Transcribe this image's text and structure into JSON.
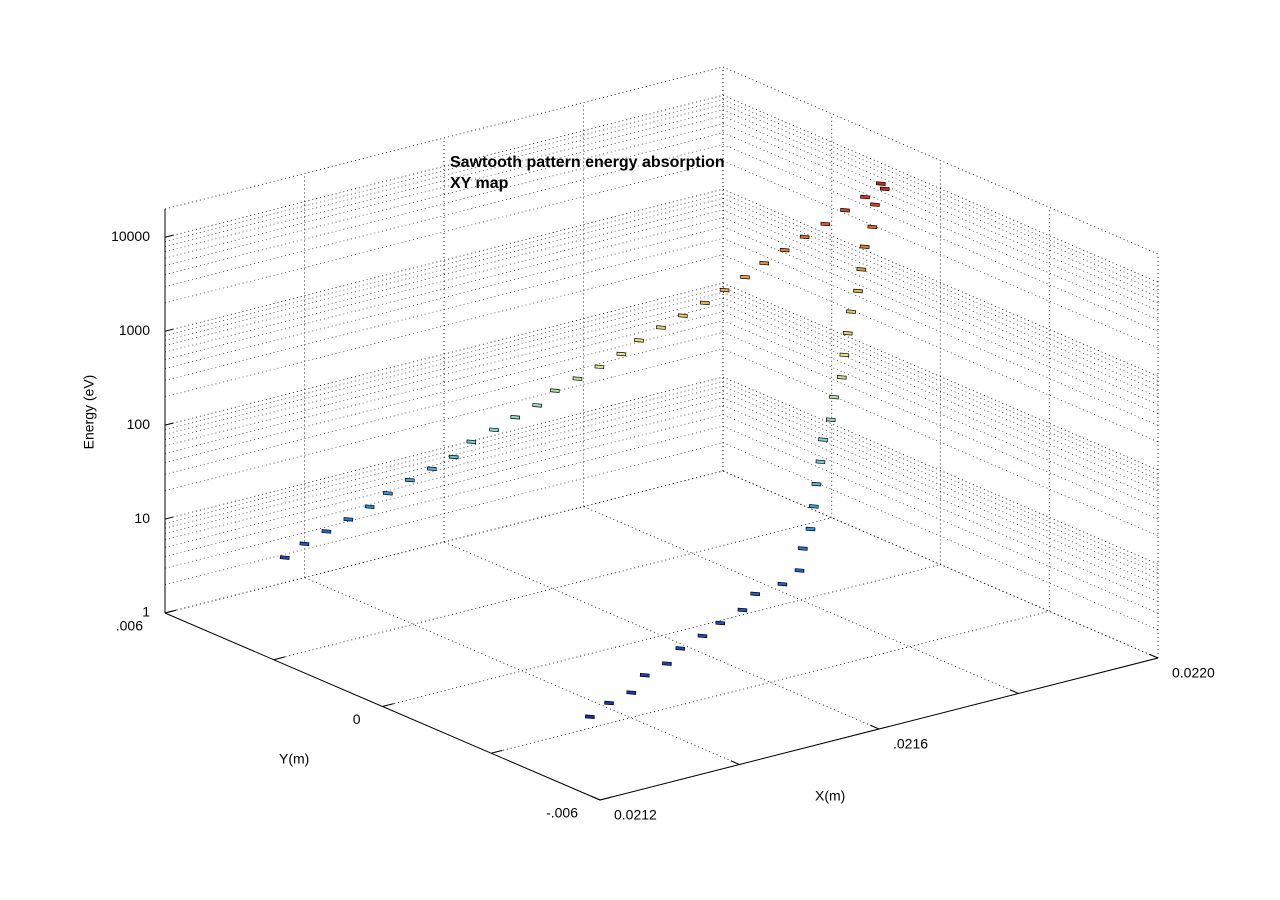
{
  "chart_data": {
    "type": "scatter3d",
    "title": [
      "Sawtooth pattern energy absorption",
      "XY map"
    ],
    "xlabel": "X(m)",
    "ylabel": "Y(m)",
    "zlabel": "Energy (eV)",
    "xlim": [
      0.0212,
      0.022
    ],
    "xticks": [
      {
        "value": 0.0212,
        "label": "0.0212"
      },
      {
        "value": 0.0214,
        "label": null
      },
      {
        "value": 0.0216,
        "label": ".0216"
      },
      {
        "value": 0.0218,
        "label": null
      },
      {
        "value": 0.022,
        "label": "0.0220"
      }
    ],
    "ylim": [
      -0.006,
      0.006
    ],
    "yticks": [
      {
        "value": -0.006,
        "label": "-.006"
      },
      {
        "value": -0.003,
        "label": null
      },
      0,
      {
        "value": 0.003,
        "label": null
      },
      {
        "value": 0.006,
        "label": ".006"
      }
    ],
    "zlim": [
      1,
      20000
    ],
    "zscale": "log",
    "zticks": [
      1,
      10,
      100,
      1000,
      10000
    ],
    "grid": true,
    "colormap": [
      "#1a2fb0",
      "#2f8fe0",
      "#7fe0d0",
      "#e8e880",
      "#f0a040",
      "#d02020"
    ],
    "x": [
      0.021306,
      0.021344,
      0.021382,
      0.02142,
      0.021458,
      0.021496,
      0.021534,
      0.021572,
      0.02161,
      0.021647,
      0.021686,
      0.021723,
      0.021734,
      0.021745,
      0.021756,
      0.021766,
      0.021778,
      0.021788,
      0.021799,
      0.02181,
      0.021821,
      0.021831,
      0.021842,
      0.021853,
      0.021863,
      0.021874,
      0.021885,
      0.021896,
      0.021906,
      0.021918,
      0.02133,
      0.02135,
      0.021369,
      0.021388,
      0.021406,
      0.021426,
      0.021445,
      0.021464,
      0.021483,
      0.021502,
      0.021522,
      0.02154,
      0.021559,
      0.021578,
      0.021598,
      0.021617,
      0.021636,
      0.021655,
      0.021674,
      0.021693,
      0.021712,
      0.021731,
      0.021755,
      0.021778,
      0.021802,
      0.021826,
      0.02185,
      0.021873,
      0.021897,
      0.02192
    ],
    "y": [
      -0.00368,
      -0.00348,
      -0.00336,
      -0.003,
      -0.00288,
      -0.00252,
      -0.0024,
      -0.00216,
      -0.00204,
      -0.00168,
      -0.00168,
      -0.00144,
      -0.00132,
      -0.00132,
      -0.0012,
      -0.00108,
      -0.00096,
      -0.00084,
      -0.00084,
      -0.00072,
      -0.00072,
      -0.0006,
      -0.00048,
      -0.00036,
      -0.00036,
      -0.00024,
      -0.00012,
      -0.00012,
      0,
      7e-05,
      0.0052,
      0.00504,
      0.0048,
      0.00456,
      0.00432,
      0.0042,
      0.00396,
      0.00372,
      0.00348,
      0.00336,
      0.00312,
      0.00288,
      0.00264,
      0.00252,
      0.00228,
      0.00204,
      0.0018,
      0.00168,
      0.00144,
      0.0012,
      0.00096,
      0.00078,
      0.00068,
      0.00059,
      0.00049,
      0.0004,
      0.00029,
      0.00019,
      0.0001,
      0
    ],
    "z": [
      2,
      2.2,
      2.3,
      2.6,
      2.8,
      3,
      3.3,
      3.5,
      3.9,
      4.3,
      4.6,
      5,
      7.8,
      12,
      19,
      30,
      47,
      74,
      115,
      182,
      282,
      447,
      692,
      1070,
      1700,
      2630,
      4170,
      6460,
      10200,
      15800,
      3,
      4.1,
      5.6,
      7.6,
      10.5,
      14,
      19.5,
      26,
      35,
      49,
      66,
      91,
      123,
      170,
      229,
      309,
      427,
      575,
      794,
      1072,
      1479,
      1995,
      2570,
      3390,
      4365,
      5623,
      7244,
      9550,
      12300,
      14130
    ]
  }
}
